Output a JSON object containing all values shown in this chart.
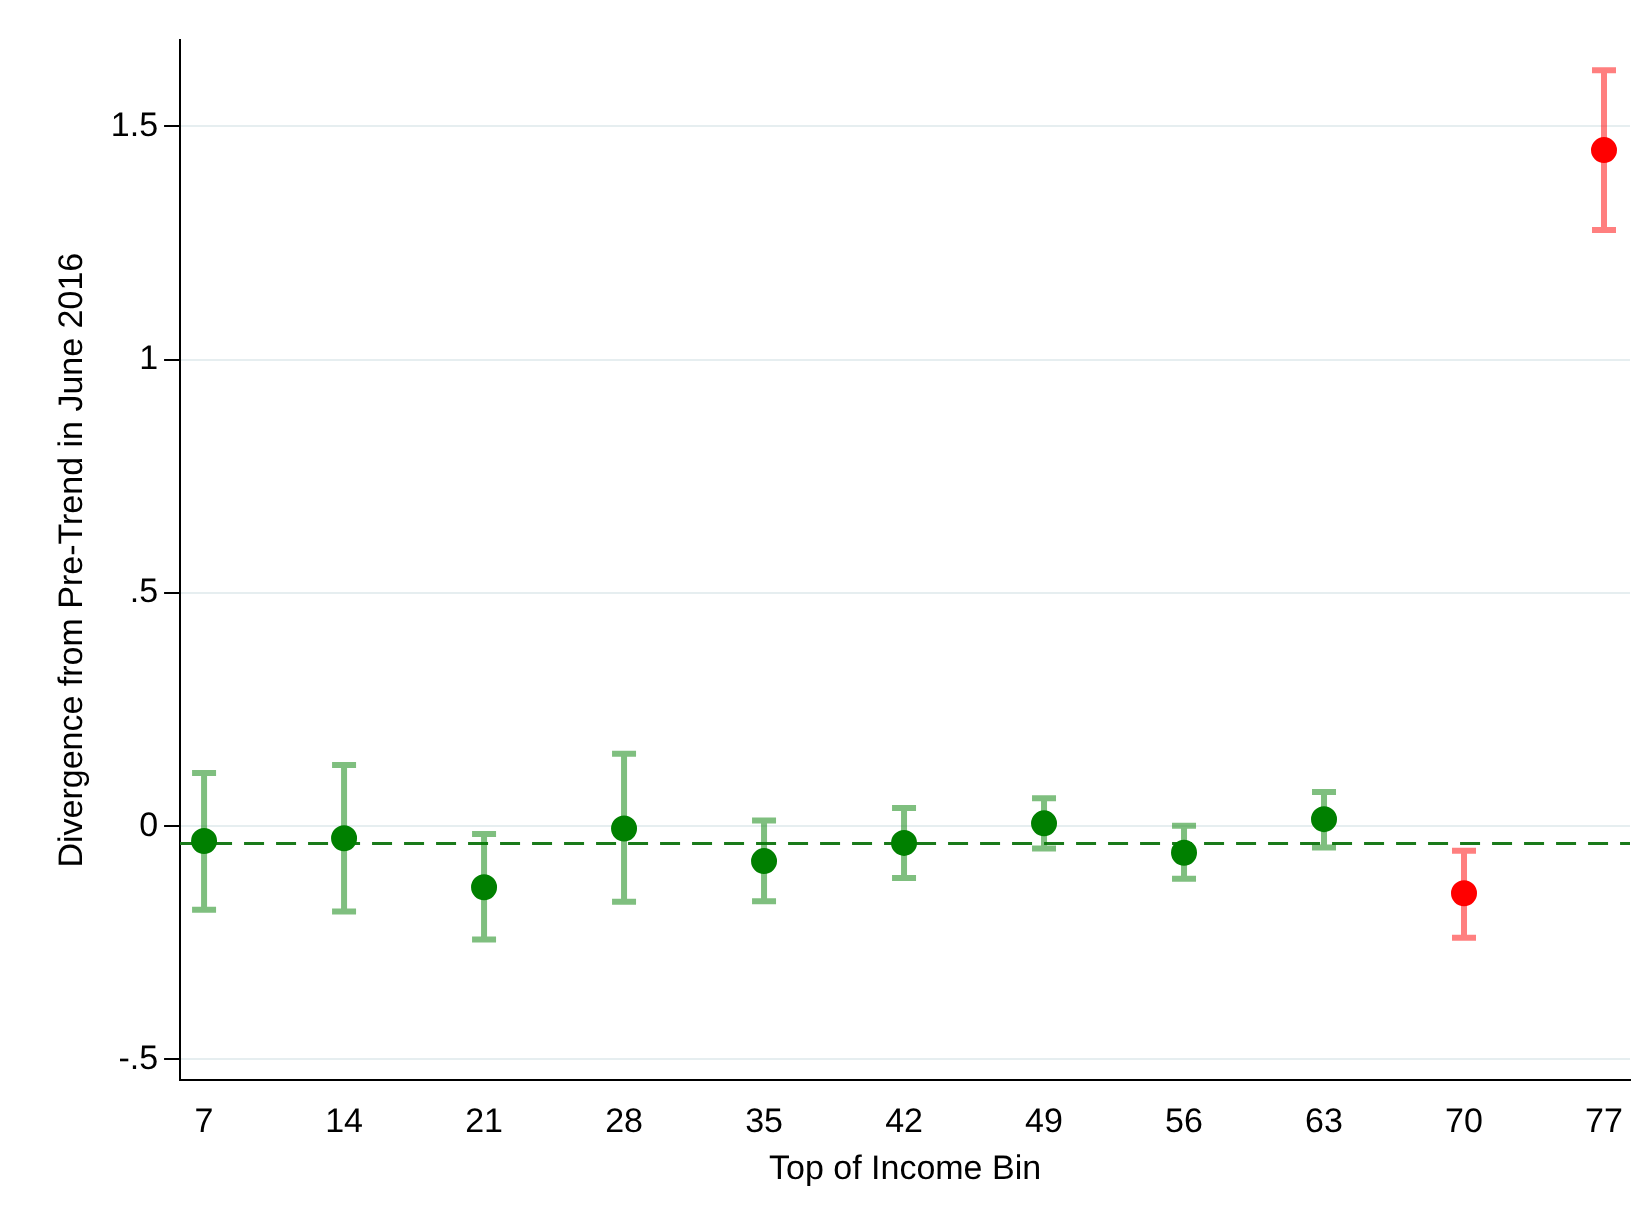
{
  "chart_data": {
    "type": "scatter",
    "xlabel": "Top of Income Bin",
    "ylabel": "Divergence from Pre-Trend in June 2016",
    "xlim": [
      5.8,
      78.3
    ],
    "xticks": [
      7,
      14,
      21,
      28,
      35,
      42,
      49,
      56,
      63,
      70,
      77
    ],
    "ylim": [
      -0.545,
      1.685
    ],
    "yticks": [
      {
        "value": -0.5,
        "label": "-.5"
      },
      {
        "value": 0,
        "label": "0"
      },
      {
        "value": 0.5,
        "label": ".5"
      },
      {
        "value": 1,
        "label": "1"
      },
      {
        "value": 1.5,
        "label": "1.5"
      }
    ],
    "grid": "y",
    "marker": "circle",
    "series": [
      {
        "color": "#008000",
        "x": [
          7,
          14,
          21,
          28,
          35,
          42,
          49,
          56,
          63
        ],
        "values": [
          -0.032,
          -0.026,
          -0.131,
          -0.005,
          -0.075,
          -0.036,
          0.006,
          -0.057,
          0.015
        ],
        "errors": [
          [
            -0.179,
            0.114
          ],
          [
            -0.183,
            0.131
          ],
          [
            -0.243,
            -0.017
          ],
          [
            -0.162,
            0.155
          ],
          [
            -0.161,
            0.012
          ],
          [
            -0.111,
            0.039
          ],
          [
            -0.048,
            0.06
          ],
          [
            -0.113,
            0.001
          ],
          [
            -0.046,
            0.073
          ]
        ]
      },
      {
        "color": "#ff0000",
        "x": [
          70,
          77
        ],
        "values": [
          -0.144,
          1.449
        ],
        "errors": [
          [
            -0.239,
            -0.053
          ],
          [
            1.278,
            1.62
          ]
        ]
      }
    ],
    "ref_lines": [
      {
        "axis": "y",
        "value": -0.037,
        "color": "#1a7a1a",
        "line_style": "dashed"
      }
    ]
  }
}
